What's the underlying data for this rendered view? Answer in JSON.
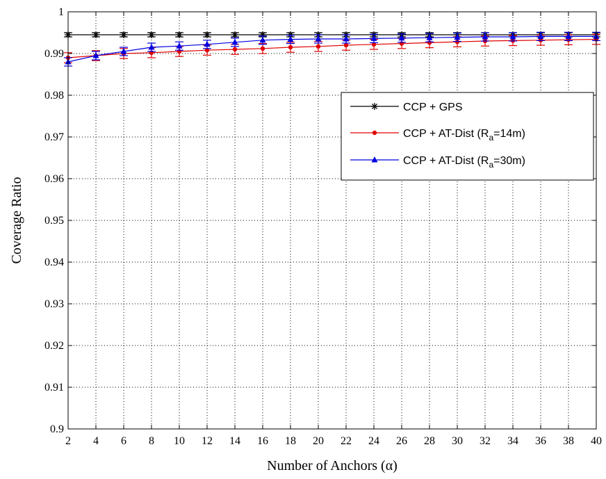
{
  "chart_data": {
    "type": "line",
    "title": "",
    "xlabel": "Number of Anchors (α)",
    "ylabel": "Coverage Ratio",
    "xlim": [
      2,
      40
    ],
    "ylim": [
      0.9,
      1.0
    ],
    "x": [
      2,
      4,
      6,
      8,
      10,
      12,
      14,
      16,
      18,
      20,
      22,
      24,
      26,
      28,
      30,
      32,
      34,
      36,
      38,
      40
    ],
    "xticks": [
      "2",
      "4",
      "6",
      "8",
      "10",
      "12",
      "14",
      "16",
      "18",
      "20",
      "22",
      "24",
      "26",
      "28",
      "30",
      "32",
      "34",
      "36",
      "38",
      "40"
    ],
    "yticks": [
      "0.9",
      "0.91",
      "0.92",
      "0.93",
      "0.94",
      "0.95",
      "0.96",
      "0.97",
      "0.98",
      "0.99",
      "1"
    ],
    "grid": true,
    "legend_position": "upper-right",
    "series": [
      {
        "name": "CCP + GPS",
        "color": "#000000",
        "marker": "star",
        "values": [
          0.9945,
          0.9945,
          0.9945,
          0.9945,
          0.9945,
          0.9945,
          0.9945,
          0.9945,
          0.9945,
          0.9945,
          0.9945,
          0.9945,
          0.9945,
          0.9945,
          0.9945,
          0.9945,
          0.9945,
          0.9945,
          0.9945,
          0.9945
        ],
        "errors": [
          0.0005,
          0.0005,
          0.0005,
          0.0005,
          0.0005,
          0.0005,
          0.0005,
          0.0005,
          0.0005,
          0.0005,
          0.0005,
          0.0005,
          0.0005,
          0.0005,
          0.0005,
          0.0005,
          0.0005,
          0.0005,
          0.0005,
          0.0005
        ]
      },
      {
        "name": "CCP + AT-Dist (R",
        "name_sub": "a",
        "name_suffix": "=14m)",
        "color": "#e00000",
        "marker": "circle",
        "values": [
          0.989,
          0.9895,
          0.99,
          0.9902,
          0.9905,
          0.9908,
          0.991,
          0.9912,
          0.9915,
          0.9917,
          0.992,
          0.9922,
          0.9924,
          0.9926,
          0.9928,
          0.993,
          0.9931,
          0.9932,
          0.9933,
          0.9934
        ],
        "errors": [
          0.0012,
          0.0012,
          0.0012,
          0.0012,
          0.0012,
          0.0012,
          0.0012,
          0.0012,
          0.0012,
          0.0012,
          0.0012,
          0.0012,
          0.0012,
          0.0012,
          0.0012,
          0.0012,
          0.0012,
          0.0012,
          0.0012,
          0.0012
        ]
      },
      {
        "name": "CCP + AT-Dist (R",
        "name_sub": "a",
        "name_suffix": "=30m)",
        "color": "#0000e0",
        "marker": "triangle",
        "values": [
          0.988,
          0.9895,
          0.9905,
          0.9915,
          0.9918,
          0.9922,
          0.9927,
          0.9932,
          0.9934,
          0.9935,
          0.9935,
          0.9936,
          0.9937,
          0.9938,
          0.9939,
          0.994,
          0.994,
          0.9941,
          0.9941,
          0.9941
        ],
        "errors": [
          0.001,
          0.001,
          0.001,
          0.001,
          0.001,
          0.001,
          0.001,
          0.001,
          0.001,
          0.001,
          0.001,
          0.001,
          0.001,
          0.001,
          0.001,
          0.001,
          0.001,
          0.001,
          0.001,
          0.001
        ]
      }
    ]
  }
}
